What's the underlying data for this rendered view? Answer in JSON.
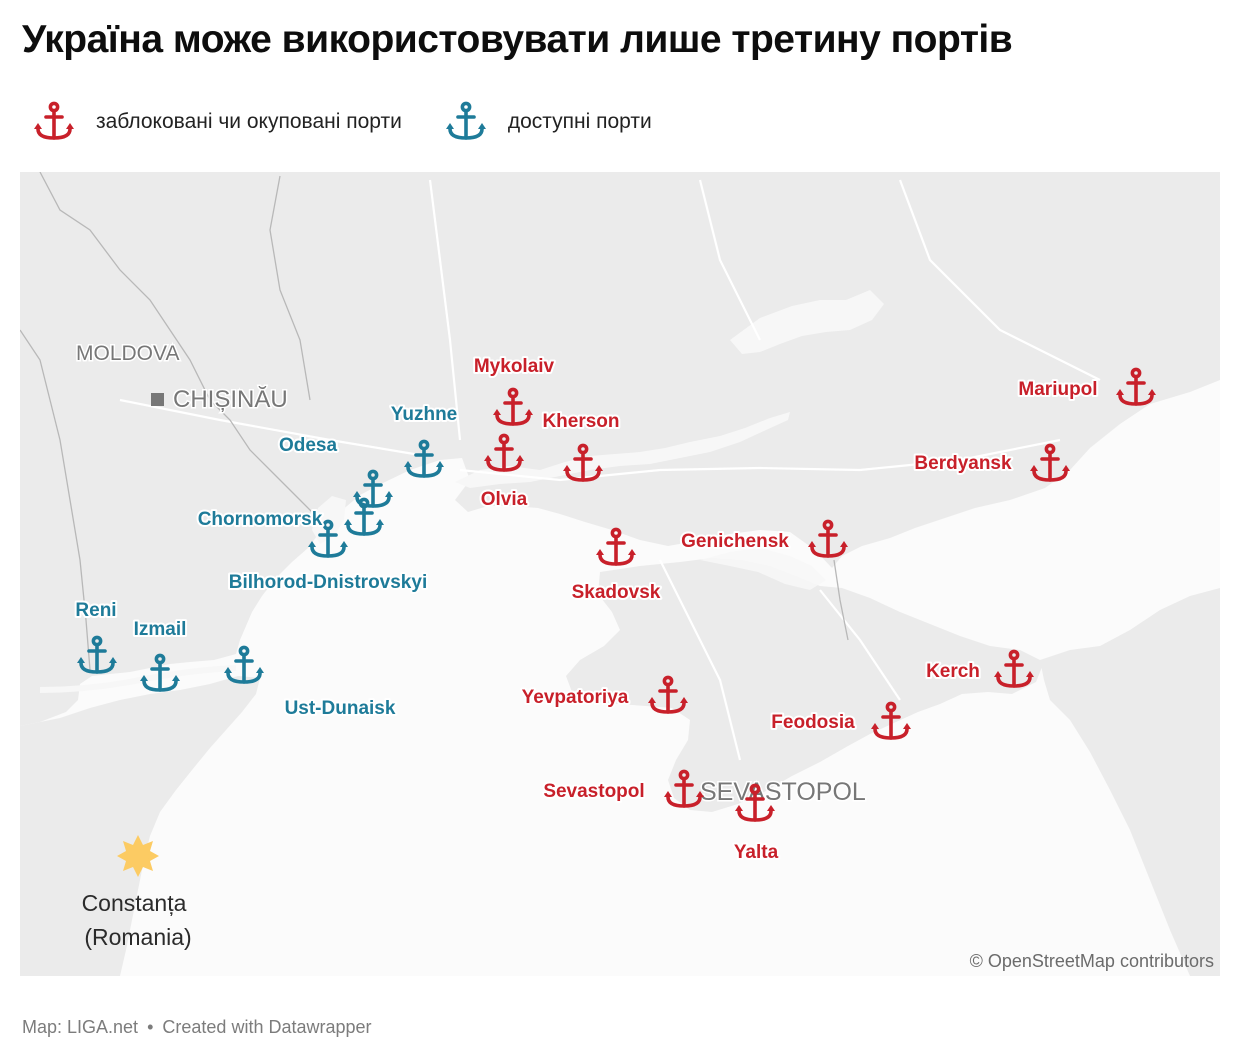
{
  "title": "Україна може використовувати лише третину портів",
  "legend": [
    {
      "label": "заблоковані чи окуповані порти",
      "color": "#c8202a",
      "icon": "anchor-icon"
    },
    {
      "label": "доступні порти",
      "color": "#1e7b99",
      "icon": "anchor-icon"
    }
  ],
  "colors": {
    "blocked": "#c8202a",
    "available": "#1e7b99",
    "land": "#ebebeb",
    "sea": "#fbfbfb",
    "marker": "#fccb63"
  },
  "map": {
    "places": {
      "moldova": "MOLDOVA",
      "chisinau": "CHIȘINĂU",
      "sevastopol_region": "SEVASTOPOL"
    },
    "constanta": {
      "line1": "Constanța",
      "line2": "(Romania)"
    }
  },
  "ports": {
    "available": [
      "Yuzhne",
      "Odesa",
      "Chornomorsk",
      "Bilhorod-Dnistrovskyi",
      "Reni",
      "Izmail",
      "Ust-Dunaisk"
    ],
    "blocked": [
      "Mykolaiv",
      "Kherson",
      "Olvia",
      "Skadovsk",
      "Genichensk",
      "Mariupol",
      "Berdyansk",
      "Kerch",
      "Feodosia",
      "Yevpatoriya",
      "Sevastopol",
      "Yalta"
    ]
  },
  "attribution": "© OpenStreetMap contributors",
  "footer": {
    "map_credit": "Map: LIGA.net",
    "separator": "•",
    "created": "Created with Datawrapper"
  }
}
